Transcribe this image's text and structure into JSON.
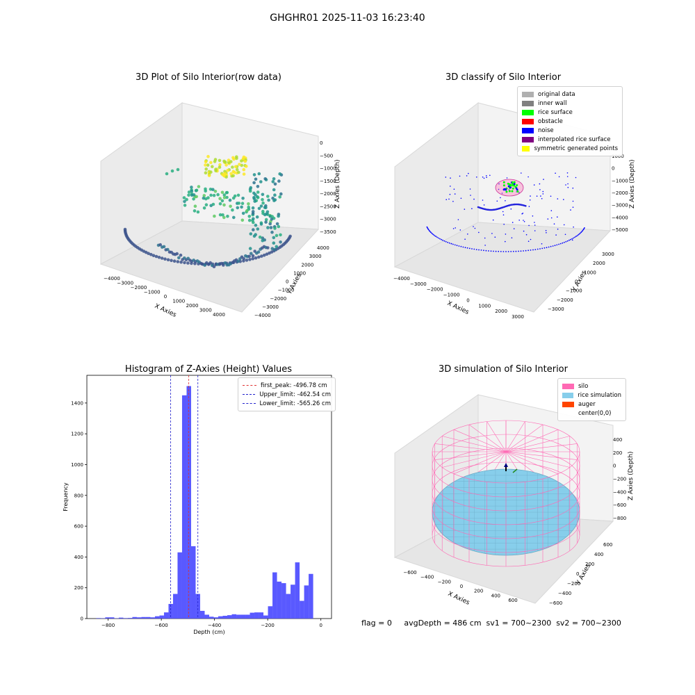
{
  "suptitle": "GHGHR01 2025-11-03 16:23:40",
  "colors": {
    "hist_bar": "#5050ff",
    "first_peak_line": "#e03030",
    "limit_line": "#2020cc",
    "silo": "#ff69b4",
    "rice": "#87ceeb",
    "auger": "#ff4500",
    "noise": "#0000ff",
    "rice_surface": "#00ff00"
  },
  "chart_data": [
    {
      "type": "scatter",
      "title": "3D Plot of Silo Interior(row data)",
      "xlabel": "X Axies",
      "ylabel": "Y Axies",
      "zlabel": "Z Axies (Depth)",
      "x_ticks": [
        "−4000",
        "−3000",
        "−2000",
        "−1000",
        "0",
        "1000",
        "2000",
        "3000",
        "4000"
      ],
      "y_ticks": [
        "−4000",
        "−3000",
        "−2000",
        "−1000",
        "0",
        "1000",
        "2000",
        "3000",
        "4000"
      ],
      "z_ticks": [
        "0",
        "−500",
        "−1000",
        "−1500",
        "−2000",
        "−2500",
        "−3000",
        "−3500"
      ],
      "colormap": "viridis"
    },
    {
      "type": "scatter",
      "title": "3D classify of Silo Interior",
      "xlabel": "X Axies",
      "ylabel": "Y Axies",
      "zlabel": "Z Axies (Depth)",
      "x_ticks": [
        "−4000",
        "−3000",
        "−2000",
        "−1000",
        "0",
        "1000",
        "2000",
        "3000"
      ],
      "y_ticks": [
        "−3000",
        "−2000",
        "−1000",
        "0",
        "1000",
        "2000",
        "3000"
      ],
      "z_ticks": [
        "1000",
        "0",
        "−1000",
        "−2000",
        "−3000",
        "−4000",
        "−5000"
      ],
      "legend": [
        {
          "label": "original data",
          "color": "#b0b0b0"
        },
        {
          "label": "inner wall",
          "color": "#808080"
        },
        {
          "label": "rice surface",
          "color": "#00ff00"
        },
        {
          "label": "obstacle",
          "color": "#ff0000"
        },
        {
          "label": "noise",
          "color": "#0000ff"
        },
        {
          "label": "interpolated rice surface",
          "color": "#800080"
        },
        {
          "label": "symmetric generated points",
          "color": "#ffff00"
        }
      ]
    },
    {
      "type": "bar",
      "title": "Histogram of Z-Axies (Height) Values",
      "xlabel": "Depth (cm)",
      "ylabel": "Frequency",
      "xlim": [
        -880,
        40
      ],
      "ylim": [
        0,
        1580
      ],
      "x_ticks": [
        -800,
        -600,
        -400,
        -200,
        0
      ],
      "x_tick_labels": [
        "−800",
        "−600",
        "−400",
        "−200",
        "0"
      ],
      "y_ticks": [
        0,
        200,
        400,
        600,
        800,
        1000,
        1200,
        1400
      ],
      "bin_width": 17,
      "bin_starts": [
        -845,
        -828,
        -811,
        -794,
        -777,
        -760,
        -743,
        -726,
        -709,
        -692,
        -675,
        -658,
        -641,
        -624,
        -607,
        -590,
        -573,
        -556,
        -539,
        -522,
        -505,
        -488,
        -471,
        -454,
        -437,
        -420,
        -403,
        -386,
        -369,
        -352,
        -335,
        -318,
        -301,
        -284,
        -267,
        -250,
        -233,
        -216,
        -199,
        -182,
        -165,
        -148,
        -131,
        -114,
        -97,
        -80,
        -63,
        -46,
        -29,
        -12
      ],
      "values": [
        3,
        2,
        8,
        8,
        2,
        6,
        3,
        4,
        10,
        8,
        10,
        10,
        8,
        15,
        20,
        40,
        95,
        160,
        430,
        1450,
        1510,
        470,
        160,
        50,
        25,
        12,
        8,
        15,
        18,
        22,
        28,
        25,
        25,
        25,
        38,
        40,
        40,
        20,
        80,
        300,
        240,
        230,
        160,
        220,
        365,
        115,
        215,
        290,
        0,
        0
      ],
      "vlines": [
        {
          "label": "first_peak: -496.78 cm",
          "x": -496.78,
          "color": "#e03030"
        },
        {
          "label": "Upper_limit: -462.54 cm",
          "x": -462.54,
          "color": "#2020cc"
        },
        {
          "label": "Lower_limit: -565.26 cm",
          "x": -565.26,
          "color": "#2020cc"
        }
      ]
    },
    {
      "type": "scatter",
      "title": "3D simulation of Silo Interior",
      "xlabel": "X Axies",
      "ylabel": "Y Axies",
      "zlabel": "Z Axies (Depth)",
      "x_ticks": [
        "−600",
        "−400",
        "−200",
        "0",
        "200",
        "400",
        "600"
      ],
      "y_ticks": [
        "−600",
        "−400",
        "−200",
        "0",
        "200",
        "400",
        "600"
      ],
      "z_ticks": [
        "400",
        "200",
        "0",
        "−200",
        "−400",
        "−600",
        "−800"
      ],
      "legend": [
        {
          "label": "silo",
          "color": "#ff69b4"
        },
        {
          "label": "rice simulation",
          "color": "#87ceeb"
        },
        {
          "label": "auger",
          "color": "#ff4500"
        },
        {
          "label": "center(0,0)",
          "color": ""
        }
      ]
    }
  ],
  "bottom_text": "flag = 0     avgDepth = 486 cm  sv1 = 700~2300  sv2 = 700~2300"
}
